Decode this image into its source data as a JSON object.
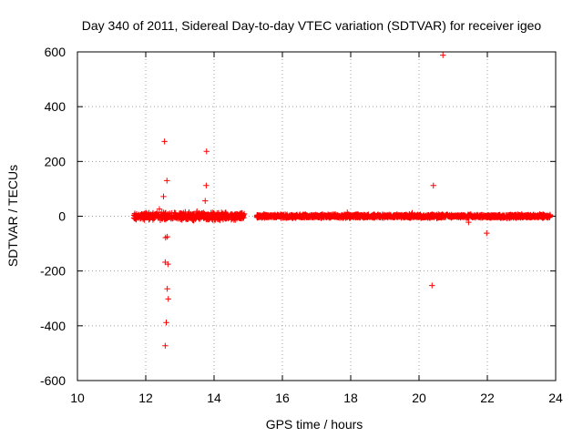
{
  "chart_data": {
    "type": "scatter",
    "title": "Day 340 of 2011, Sidereal Day-to-day VTEC variation (SDTVAR) for receiver igeo",
    "xlabel": "GPS time / hours",
    "ylabel": "SDTVAR / TECUs",
    "xlim": [
      10,
      24
    ],
    "ylim": [
      -600,
      600
    ],
    "xticks": [
      10,
      12,
      14,
      16,
      18,
      20,
      22,
      24
    ],
    "yticks": [
      -600,
      -400,
      -200,
      0,
      200,
      400,
      600
    ],
    "xtick_labels": [
      "10",
      "12",
      "14",
      "16",
      "18",
      "20",
      "22",
      "24"
    ],
    "ytick_labels": [
      "-600",
      "-400",
      "-200",
      "0",
      "200",
      "400",
      "600"
    ],
    "grid": true,
    "marker": "+",
    "color": "#ff0000",
    "dense_bands": [
      {
        "x_start": 11.65,
        "x_end": 14.9,
        "center": 0,
        "spread": 12
      },
      {
        "x_start": 15.25,
        "x_end": 23.85,
        "center": 0,
        "spread": 6
      }
    ],
    "outliers": [
      {
        "x": 12.55,
        "y": 273
      },
      {
        "x": 12.62,
        "y": 130
      },
      {
        "x": 12.52,
        "y": 72
      },
      {
        "x": 12.58,
        "y": -78
      },
      {
        "x": 12.63,
        "y": -75
      },
      {
        "x": 12.57,
        "y": -168
      },
      {
        "x": 12.65,
        "y": -175
      },
      {
        "x": 12.63,
        "y": -265
      },
      {
        "x": 12.66,
        "y": -302
      },
      {
        "x": 12.6,
        "y": -388
      },
      {
        "x": 12.57,
        "y": -473
      },
      {
        "x": 13.78,
        "y": 237
      },
      {
        "x": 13.77,
        "y": 112
      },
      {
        "x": 13.74,
        "y": 56
      },
      {
        "x": 20.7,
        "y": 588
      },
      {
        "x": 20.42,
        "y": 112
      },
      {
        "x": 20.38,
        "y": -253
      },
      {
        "x": 21.98,
        "y": -62
      },
      {
        "x": 21.45,
        "y": -22
      },
      {
        "x": 12.4,
        "y": 26
      },
      {
        "x": 13.5,
        "y": 18
      },
      {
        "x": 17.9,
        "y": 14
      },
      {
        "x": 19.8,
        "y": 12
      }
    ]
  }
}
